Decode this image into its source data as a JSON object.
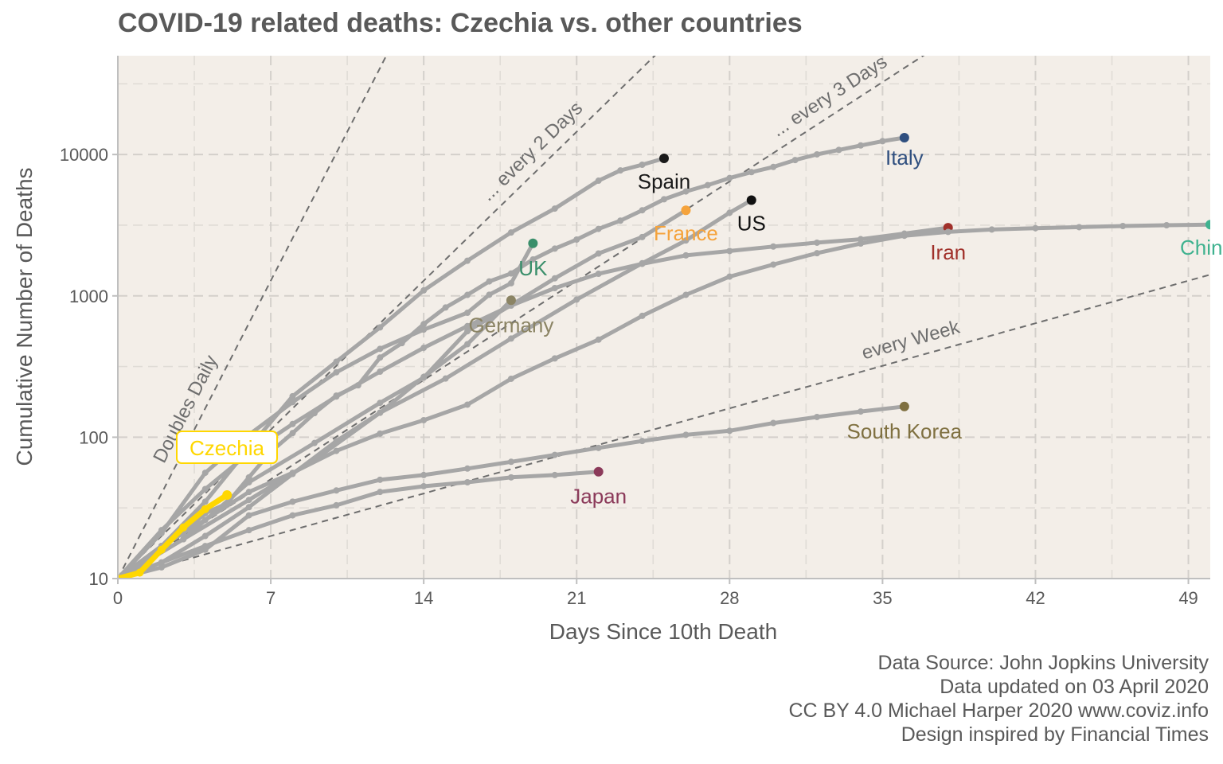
{
  "chart_data": {
    "type": "line",
    "title": "COVID-19 related deaths: Czechia vs. other countries",
    "xlabel": "Days Since 10th Death",
    "ylabel": "Cumulative Number of Deaths",
    "xlim": [
      0,
      50
    ],
    "ylim": [
      10,
      50000
    ],
    "yscale": "log",
    "xticks": [
      0,
      7,
      14,
      21,
      28,
      35,
      42,
      49
    ],
    "yticks": [
      10,
      100,
      1000,
      10000
    ],
    "grid": true,
    "highlight_color": "#FFD700",
    "background_color": "#F3EEE8",
    "reference_lines": [
      {
        "label": "Doubles Daily",
        "doubling_days": 1
      },
      {
        "label": "... every 2 Days",
        "doubling_days": 2
      },
      {
        "label": "... every 3 Days",
        "doubling_days": 3
      },
      {
        "label": "every  Week",
        "doubling_days": 7
      }
    ],
    "series": [
      {
        "name": "Czechia",
        "color": "#FFD700",
        "highlight": true,
        "x": [
          0,
          1,
          2,
          3,
          4,
          5
        ],
        "y": [
          10,
          11,
          16,
          23,
          31,
          39
        ]
      },
      {
        "name": "Italy",
        "color": "#2F4F7F",
        "x": [
          0,
          1,
          2,
          3,
          4,
          5,
          6,
          7,
          8,
          9,
          10,
          11,
          12,
          13,
          14,
          15,
          16,
          17,
          18,
          19,
          20,
          21,
          22,
          23,
          24,
          25,
          26,
          27,
          28,
          29,
          30,
          31,
          32,
          33,
          34,
          35,
          36
        ],
        "y": [
          10,
          12,
          17,
          21,
          29,
          34,
          52,
          79,
          107,
          148,
          197,
          233,
          366,
          463,
          631,
          827,
          1016,
          1266,
          1441,
          1809,
          2158,
          2503,
          2978,
          3405,
          4032,
          4825,
          5476,
          6077,
          6820,
          7503,
          8165,
          9134,
          10023,
          10779,
          11591,
          12428,
          13155
        ]
      },
      {
        "name": "Spain",
        "color": "#1A1A1A",
        "x": [
          0,
          2,
          4,
          6,
          8,
          10,
          12,
          14,
          16,
          18,
          20,
          22,
          23,
          24,
          25
        ],
        "y": [
          10,
          17,
          35,
          84,
          195,
          342,
          598,
          1093,
          1772,
          2808,
          4145,
          6528,
          7716,
          8464,
          9387
        ]
      },
      {
        "name": "France",
        "color": "#F5A33C",
        "x": [
          0,
          3,
          6,
          9,
          12,
          14,
          16,
          18,
          20,
          22,
          24,
          26
        ],
        "y": [
          10,
          19,
          48,
          91,
          175,
          264,
          562,
          860,
          1331,
          1995,
          2606,
          4032
        ]
      },
      {
        "name": "US",
        "color": "#111111",
        "x": [
          0,
          3,
          6,
          9,
          12,
          15,
          18,
          21,
          24,
          26,
          28,
          29
        ],
        "y": [
          10,
          19,
          36,
          69,
          149,
          260,
          499,
          942,
          1701,
          2467,
          3873,
          4757
        ]
      },
      {
        "name": "UK",
        "color": "#3A8F6B",
        "x": [
          0,
          2,
          4,
          6,
          8,
          10,
          12,
          14,
          16,
          17,
          18,
          19
        ],
        "y": [
          10,
          21,
          56,
          104,
          177,
          288,
          422,
          577,
          759,
          1019,
          1228,
          2352
        ]
      },
      {
        "name": "Iran",
        "color": "#A0302A",
        "x": [
          0,
          2,
          4,
          6,
          8,
          10,
          12,
          14,
          16,
          18,
          20,
          22,
          24,
          26,
          28,
          30,
          32,
          34,
          36,
          38
        ],
        "y": [
          10,
          22,
          43,
          77,
          124,
          194,
          291,
          429,
          611,
          853,
          1135,
          1433,
          1685,
          1934,
          2077,
          2234,
          2378,
          2517,
          2757,
          3036
        ]
      },
      {
        "name": "Germany",
        "color": "#8B8464",
        "x": [
          0,
          2,
          4,
          6,
          8,
          10,
          12,
          14,
          16,
          18
        ],
        "y": [
          10,
          13,
          20,
          32,
          55,
          94,
          149,
          267,
          455,
          931
        ]
      },
      {
        "name": "China",
        "color": "#3FB28F",
        "x": [
          0,
          2,
          4,
          6,
          8,
          10,
          12,
          14,
          16,
          18,
          20,
          22,
          24,
          26,
          28,
          30,
          32,
          34,
          36,
          38,
          40,
          42,
          44,
          46,
          48,
          50
        ],
        "y": [
          10,
          17,
          26,
          41,
          56,
          80,
          106,
          132,
          170,
          259,
          361,
          490,
          722,
          1017,
          1368,
          1665,
          2004,
          2345,
          2663,
          2835,
          2946,
          3013,
          3062,
          3120,
          3160,
          3193
        ]
      },
      {
        "name": "South Korea",
        "color": "#7F7040",
        "x": [
          0,
          2,
          4,
          6,
          8,
          10,
          12,
          14,
          16,
          18,
          20,
          22,
          24,
          26,
          28,
          30,
          32,
          34,
          36
        ],
        "y": [
          10,
          12,
          16,
          28,
          35,
          42,
          50,
          54,
          60,
          67,
          75,
          84,
          94,
          104,
          111,
          126,
          139,
          152,
          165
        ]
      },
      {
        "name": "Japan",
        "color": "#8B3A5A",
        "x": [
          0,
          2,
          4,
          6,
          8,
          10,
          12,
          14,
          16,
          18,
          20,
          22
        ],
        "y": [
          10,
          13,
          17,
          22,
          28,
          33,
          41,
          45,
          48,
          52,
          54,
          57
        ]
      }
    ]
  },
  "caption": {
    "line1": "Data Source: John Jopkins University",
    "line2": "Data updated on 03 April 2020",
    "line3": "CC BY 4.0 Michael Harper 2020 www.coviz.info",
    "line4": "Design inspired by Financial Times"
  }
}
